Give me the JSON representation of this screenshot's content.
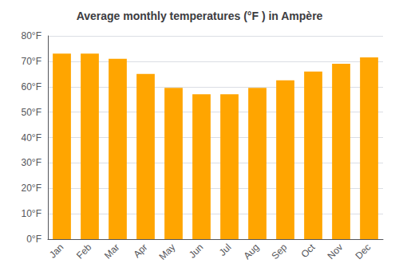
{
  "chart_data": {
    "type": "bar",
    "title": "Average monthly temperatures (°F ) in Ampère",
    "categories": [
      "Jan",
      "Feb",
      "Mar",
      "Apr",
      "May",
      "Jun",
      "Jul",
      "Aug",
      "Sep",
      "Oct",
      "Nov",
      "Dec"
    ],
    "values": [
      73,
      73,
      71,
      65,
      59.5,
      57,
      57,
      59.5,
      62.5,
      66,
      69,
      71.5
    ],
    "color": "#FFA500",
    "ylim": [
      0,
      80
    ],
    "yticks": [
      {
        "value": 0,
        "label": "0°F"
      },
      {
        "value": 10,
        "label": "10°F"
      },
      {
        "value": 20,
        "label": "20°F"
      },
      {
        "value": 30,
        "label": "30°F"
      },
      {
        "value": 40,
        "label": "40°F"
      },
      {
        "value": 50,
        "label": "50°F"
      },
      {
        "value": 60,
        "label": "60°F"
      },
      {
        "value": 70,
        "label": "70°F"
      },
      {
        "value": 80,
        "label": "80°F"
      }
    ],
    "grid": true
  }
}
